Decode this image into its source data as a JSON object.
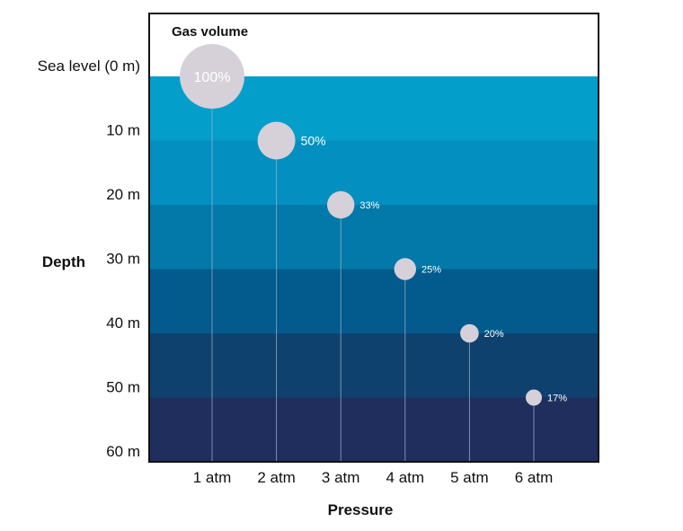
{
  "chart_data": {
    "type": "scatter",
    "xlabel": "Pressure",
    "ylabel": "Depth",
    "header": "Gas volume",
    "x_ticks": [
      "1 atm",
      "2 atm",
      "3 atm",
      "4 atm",
      "5 atm",
      "6 atm"
    ],
    "y_ticks": [
      "Sea level (0 m)",
      "10 m",
      "20 m",
      "30 m",
      "40 m",
      "50 m",
      "60 m"
    ],
    "points": [
      {
        "pressure_atm": 1,
        "depth_m": 0,
        "volume_pct": 100,
        "label": "100%"
      },
      {
        "pressure_atm": 2,
        "depth_m": 10,
        "volume_pct": 50,
        "label": "50%"
      },
      {
        "pressure_atm": 3,
        "depth_m": 20,
        "volume_pct": 33,
        "label": "33%"
      },
      {
        "pressure_atm": 4,
        "depth_m": 30,
        "volume_pct": 25,
        "label": "25%"
      },
      {
        "pressure_atm": 5,
        "depth_m": 40,
        "volume_pct": 20,
        "label": "20%"
      },
      {
        "pressure_atm": 6,
        "depth_m": 50,
        "volume_pct": 17,
        "label": "17%"
      }
    ],
    "ylim": [
      0,
      60
    ],
    "band_colors": [
      "#049ECB",
      "#038FBF",
      "#0279A8",
      "#035A8C",
      "#0F416E",
      "#1F2E5D"
    ],
    "bubble_color": "#D6D0D9",
    "grid": false
  }
}
